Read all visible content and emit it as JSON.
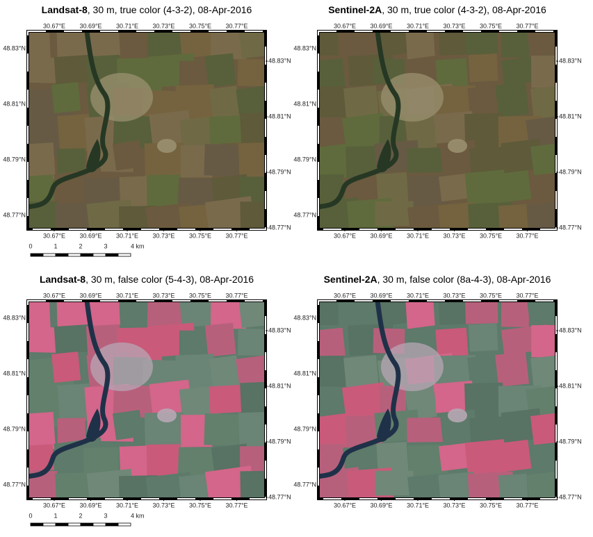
{
  "panels": [
    {
      "title_bold": "Landsat-8",
      "title_rest": ", 30 m, true color (4-3-2), 08-Apr-2016"
    },
    {
      "title_bold": "Sentinel-2A",
      "title_rest": ", 30 m, true color (4-3-2), 08-Apr-2016"
    },
    {
      "title_bold": "Landsat-8",
      "title_rest": ", 30 m, false color (5-4-3), 08-Apr-2016"
    },
    {
      "title_bold": "Sentinel-2A",
      "title_rest": ", 30 m, false color (8a-4-3), 08-Apr-2016"
    }
  ],
  "lon_labels": [
    "30.67°E",
    "30.69°E",
    "30.71°E",
    "30.73°E",
    "30.75°E",
    "30.77°E"
  ],
  "lat_labels": [
    "48.83°N",
    "48.81°N",
    "48.79°N",
    "48.77°N"
  ],
  "scale_labels": [
    "0",
    "1",
    "2",
    "3",
    "4 km"
  ]
}
